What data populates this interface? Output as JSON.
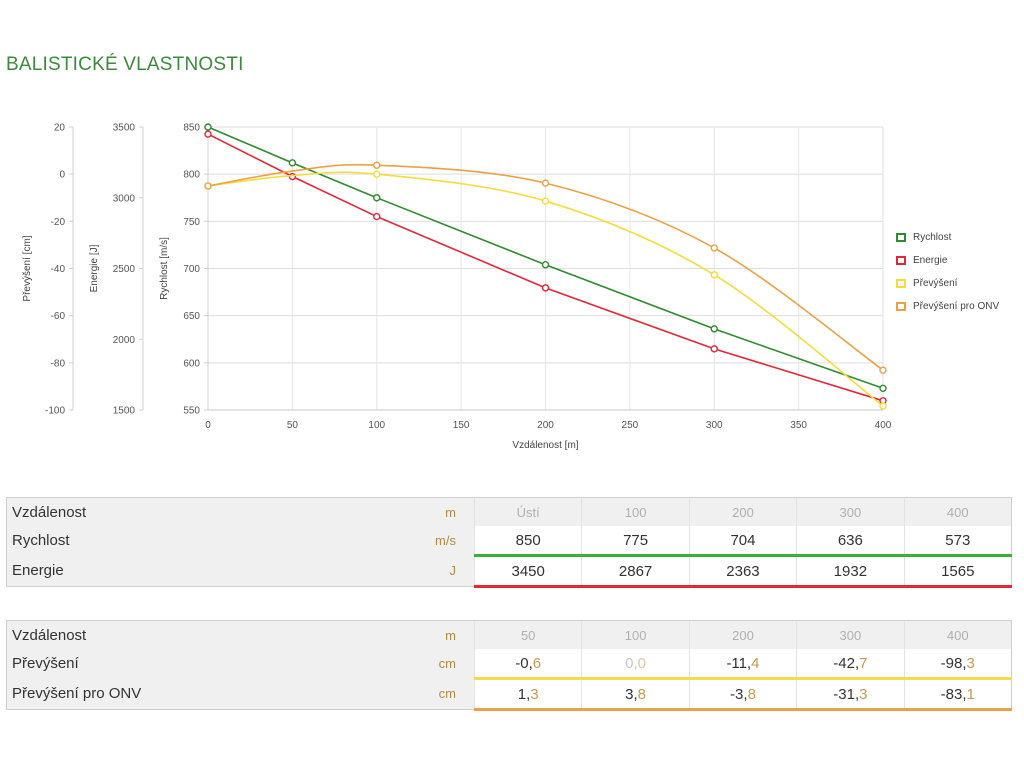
{
  "page": {
    "title": "BALISTICKÉ VLASTNOSTI"
  },
  "colors": {
    "rychlost": "#2e8b2e",
    "energie": "#e0283a",
    "prevyseni": "#f5dc3c",
    "prevyseni_onv": "#eba245"
  },
  "chart_data": {
    "type": "line",
    "xlabel": "Vzdálenost [m]",
    "x_ticks": [
      "0",
      "50",
      "100",
      "150",
      "200",
      "250",
      "300",
      "350",
      "400"
    ],
    "xlim": [
      0,
      400
    ],
    "grid": true,
    "legend_position": "right",
    "axes": [
      {
        "id": "prevyseni",
        "label": "Převýšení [cm]",
        "range": [
          -100,
          20
        ],
        "ticks": [
          "20",
          "0",
          "-20",
          "-40",
          "-60",
          "-80",
          "-100"
        ]
      },
      {
        "id": "energie",
        "label": "Energie [J]",
        "range": [
          1500,
          3500
        ],
        "ticks": [
          "3500",
          "3000",
          "2500",
          "2000",
          "1500"
        ]
      },
      {
        "id": "rychlost",
        "label": "Rychlost [m/s]",
        "range": [
          550,
          850
        ],
        "ticks": [
          "850",
          "800",
          "750",
          "700",
          "650",
          "600",
          "550"
        ]
      }
    ],
    "series": [
      {
        "name": "Rychlost",
        "axis": "rychlost",
        "color": "#2e8b2e",
        "x": [
          0,
          50,
          100,
          200,
          300,
          400
        ],
        "y": [
          850,
          812,
          775,
          704,
          636,
          573
        ]
      },
      {
        "name": "Energie",
        "axis": "energie",
        "color": "#e0283a",
        "x": [
          0,
          50,
          100,
          200,
          300,
          400
        ],
        "y": [
          3450,
          3150,
          2867,
          2363,
          1932,
          1565
        ]
      },
      {
        "name": "Převýšení",
        "axis": "prevyseni",
        "color": "#f5dc3c",
        "x": [
          0,
          50,
          100,
          200,
          300,
          400
        ],
        "y": [
          -5,
          -0.6,
          0,
          -11.4,
          -42.7,
          -98.3
        ]
      },
      {
        "name": "Převýšení pro ONV",
        "axis": "prevyseni",
        "color": "#eba245",
        "x": [
          0,
          50,
          100,
          200,
          300,
          400
        ],
        "y": [
          -5,
          1.3,
          3.8,
          -3.8,
          -31.3,
          -83.1
        ]
      }
    ]
  },
  "table1": {
    "header": {
      "label": "Vzdálenost",
      "unit": "m",
      "cells": [
        "Ústí",
        "100",
        "200",
        "300",
        "400"
      ]
    },
    "rows": [
      {
        "label": "Rychlost",
        "unit": "m/s",
        "cells": [
          [
            "850",
            ""
          ],
          [
            "775",
            ""
          ],
          [
            "704",
            ""
          ],
          [
            "636",
            ""
          ],
          [
            "573",
            ""
          ]
        ]
      },
      {
        "label": "Energie",
        "unit": "J",
        "cells": [
          [
            "3450",
            ""
          ],
          [
            "2867",
            ""
          ],
          [
            "2363",
            ""
          ],
          [
            "1932",
            ""
          ],
          [
            "1565",
            ""
          ]
        ]
      }
    ]
  },
  "table2": {
    "header": {
      "label": "Vzdálenost",
      "unit": "m",
      "cells": [
        "50",
        "100",
        "200",
        "300",
        "400"
      ]
    },
    "rows": [
      {
        "label": "Převýšení",
        "unit": "cm",
        "cells": [
          [
            "-0,",
            "6"
          ],
          [
            "0,",
            "0"
          ],
          [
            "-11,",
            "4"
          ],
          [
            "-42,",
            "7"
          ],
          [
            "-98,",
            "3"
          ]
        ]
      },
      {
        "label": "Převýšení pro ONV",
        "unit": "cm",
        "cells": [
          [
            "1,",
            "3"
          ],
          [
            "3,",
            "8"
          ],
          [
            "-3,",
            "8"
          ],
          [
            "-31,",
            "3"
          ],
          [
            "-83,",
            "1"
          ]
        ]
      }
    ]
  }
}
